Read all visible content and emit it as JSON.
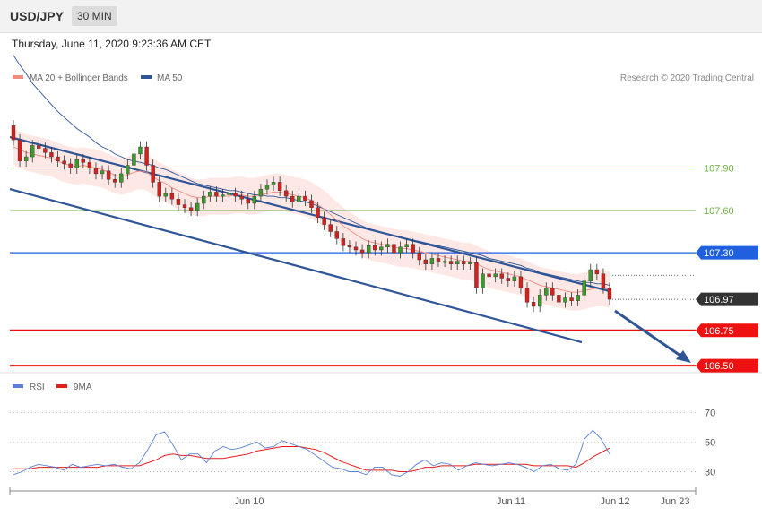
{
  "header": {
    "symbol": "USD/JPY",
    "timeframe": "30 MIN"
  },
  "date_line": "Thursday, June 11, 2020 9:23:36 AM CET",
  "credit": "Research © 2020 Trading Central",
  "colors": {
    "ma20": "#f28b82",
    "ma50": "#2f5597",
    "support": "#ee1111",
    "resistance": "#1f5fe0",
    "target": "#6cb33f",
    "rsi": "#5b7fd6",
    "rsi_ma": "#e31c1c"
  },
  "chart_data": [
    {
      "type": "candlestick",
      "legend": [
        "MA 20 + Bollinger Bands",
        "MA 50"
      ],
      "x_ticks": [
        "Jun 10",
        "Jun 11",
        "Jun 12",
        "Jun 23"
      ],
      "price_range": [
        106.45,
        108.85
      ],
      "levels": [
        {
          "label": "107.90",
          "value": 107.9,
          "kind": "target"
        },
        {
          "label": "107.60",
          "value": 107.6,
          "kind": "target"
        },
        {
          "label": "107.30",
          "value": 107.3,
          "kind": "resistance"
        },
        {
          "label": "106.97",
          "value": 106.97,
          "kind": "last"
        },
        {
          "label": "106.75",
          "value": 106.75,
          "kind": "support"
        },
        {
          "label": "106.50",
          "value": 106.5,
          "kind": "support"
        }
      ],
      "close": [
        108.1,
        107.95,
        107.98,
        108.06,
        108.04,
        108.01,
        107.98,
        107.95,
        107.93,
        107.9,
        107.96,
        107.94,
        107.9,
        107.86,
        107.88,
        107.82,
        107.8,
        107.86,
        107.92,
        108.0,
        108.05,
        107.92,
        107.8,
        107.7,
        107.72,
        107.68,
        107.64,
        107.62,
        107.6,
        107.65,
        107.7,
        107.73,
        107.7,
        107.71,
        107.72,
        107.7,
        107.68,
        107.65,
        107.7,
        107.75,
        107.78,
        107.8,
        107.74,
        107.7,
        107.66,
        107.7,
        107.67,
        107.62,
        107.55,
        107.5,
        107.45,
        107.4,
        107.35,
        107.34,
        107.32,
        107.3,
        107.35,
        107.32,
        107.34,
        107.36,
        107.3,
        107.34,
        107.36,
        107.3,
        107.25,
        107.22,
        107.26,
        107.24,
        107.24,
        107.22,
        107.24,
        107.22,
        107.23,
        107.05,
        107.15,
        107.13,
        107.15,
        107.12,
        107.1,
        107.13,
        107.05,
        106.95,
        106.92,
        107.0,
        107.05,
        107.0,
        106.95,
        106.98,
        106.96,
        107.0,
        107.1,
        107.18,
        107.15,
        107.05,
        106.97
      ],
      "open": [
        108.2,
        108.1,
        107.95,
        107.98,
        108.06,
        108.04,
        108.01,
        107.98,
        107.95,
        107.93,
        107.9,
        107.96,
        107.94,
        107.9,
        107.86,
        107.88,
        107.82,
        107.8,
        107.86,
        107.92,
        108.0,
        108.05,
        107.92,
        107.8,
        107.7,
        107.72,
        107.68,
        107.64,
        107.62,
        107.6,
        107.65,
        107.7,
        107.73,
        107.7,
        107.71,
        107.72,
        107.7,
        107.68,
        107.65,
        107.7,
        107.75,
        107.78,
        107.8,
        107.74,
        107.7,
        107.66,
        107.7,
        107.67,
        107.62,
        107.55,
        107.5,
        107.45,
        107.4,
        107.35,
        107.34,
        107.32,
        107.3,
        107.35,
        107.32,
        107.34,
        107.36,
        107.3,
        107.34,
        107.36,
        107.3,
        107.25,
        107.22,
        107.26,
        107.24,
        107.24,
        107.22,
        107.24,
        107.22,
        107.23,
        107.05,
        107.15,
        107.13,
        107.15,
        107.12,
        107.1,
        107.13,
        107.05,
        106.95,
        106.92,
        107.0,
        107.05,
        107.0,
        106.95,
        106.98,
        106.96,
        107.0,
        107.1,
        107.18,
        107.15,
        107.05
      ],
      "ma20": [
        108.05,
        108.03,
        108.01,
        108.0,
        107.99,
        107.98,
        107.97,
        107.95,
        107.93,
        107.92,
        107.91,
        107.92,
        107.91,
        107.9,
        107.89,
        107.87,
        107.85,
        107.84,
        107.85,
        107.87,
        107.88,
        107.87,
        107.84,
        107.81,
        107.79,
        107.76,
        107.74,
        107.72,
        107.7,
        107.69,
        107.69,
        107.7,
        107.7,
        107.7,
        107.7,
        107.71,
        107.71,
        107.7,
        107.7,
        107.71,
        107.72,
        107.73,
        107.73,
        107.72,
        107.71,
        107.7,
        107.69,
        107.67,
        107.64,
        107.61,
        107.57,
        107.53,
        107.49,
        107.46,
        107.43,
        107.4,
        107.38,
        107.37,
        107.36,
        107.35,
        107.34,
        107.33,
        107.33,
        107.32,
        107.31,
        107.3,
        107.29,
        107.28,
        107.27,
        107.26,
        107.25,
        107.24,
        107.24,
        107.22,
        107.2,
        107.18,
        107.17,
        107.16,
        107.15,
        107.14,
        107.13,
        107.11,
        107.09,
        107.07,
        107.06,
        107.05,
        107.04,
        107.03,
        107.02,
        107.02,
        107.03,
        107.04,
        107.05,
        107.05,
        107.04
      ],
      "ma50": [
        108.7,
        108.63,
        108.57,
        108.5,
        108.45,
        108.4,
        108.35,
        108.3,
        108.26,
        108.22,
        108.18,
        108.15,
        108.12,
        108.08,
        108.05,
        108.03,
        108.0,
        107.98,
        107.96,
        107.95,
        107.94,
        107.93,
        107.92,
        107.9,
        107.89,
        107.87,
        107.85,
        107.83,
        107.81,
        107.79,
        107.78,
        107.77,
        107.76,
        107.75,
        107.74,
        107.74,
        107.73,
        107.72,
        107.71,
        107.71,
        107.7,
        107.7,
        107.69,
        107.69,
        107.68,
        107.67,
        107.66,
        107.65,
        107.63,
        107.61,
        107.59,
        107.57,
        107.55,
        107.53,
        107.51,
        107.49,
        107.47,
        107.46,
        107.44,
        107.43,
        107.42,
        107.41,
        107.4,
        107.39,
        107.38,
        107.37,
        107.36,
        107.35,
        107.34,
        107.33,
        107.32,
        107.31,
        107.3,
        107.29,
        107.28,
        107.26,
        107.25,
        107.24,
        107.23,
        107.22,
        107.21,
        107.19,
        107.18,
        107.16,
        107.15,
        107.14,
        107.13,
        107.12,
        107.11,
        107.1,
        107.09,
        107.09,
        107.08,
        107.08,
        107.07
      ]
    },
    {
      "type": "line",
      "legend": [
        "RSI",
        "9MA"
      ],
      "y_ticks": [
        "70",
        "50",
        "30"
      ],
      "ylim": [
        17,
        80
      ],
      "rsi": [
        28,
        30,
        33,
        35,
        34,
        33,
        31,
        35,
        33,
        34,
        35,
        34,
        35,
        33,
        32,
        36,
        45,
        55,
        57,
        48,
        38,
        42,
        42,
        36,
        44,
        47,
        45,
        46,
        48,
        50,
        46,
        47,
        51,
        49,
        47,
        45,
        41,
        37,
        33,
        32,
        30,
        30,
        28,
        33,
        33,
        28,
        27,
        30,
        35,
        38,
        34,
        36,
        35,
        31,
        34,
        36,
        35,
        34,
        35,
        36,
        35,
        33,
        30,
        34,
        35,
        32,
        31,
        35,
        52,
        58,
        52,
        42
      ],
      "rsi_ma": [
        32,
        32,
        32,
        33,
        33,
        33,
        33,
        33,
        33,
        33,
        33,
        34,
        34,
        34,
        34,
        34,
        36,
        38,
        41,
        42,
        41,
        41,
        40,
        39,
        39,
        39,
        40,
        41,
        42,
        44,
        45,
        46,
        47,
        47,
        47,
        46,
        45,
        43,
        40,
        37,
        35,
        33,
        31,
        31,
        31,
        31,
        30,
        30,
        31,
        33,
        33,
        34,
        34,
        34,
        34,
        35,
        35,
        35,
        35,
        35,
        35,
        35,
        34,
        34,
        34,
        34,
        34,
        33,
        36,
        40,
        43,
        46
      ]
    }
  ]
}
